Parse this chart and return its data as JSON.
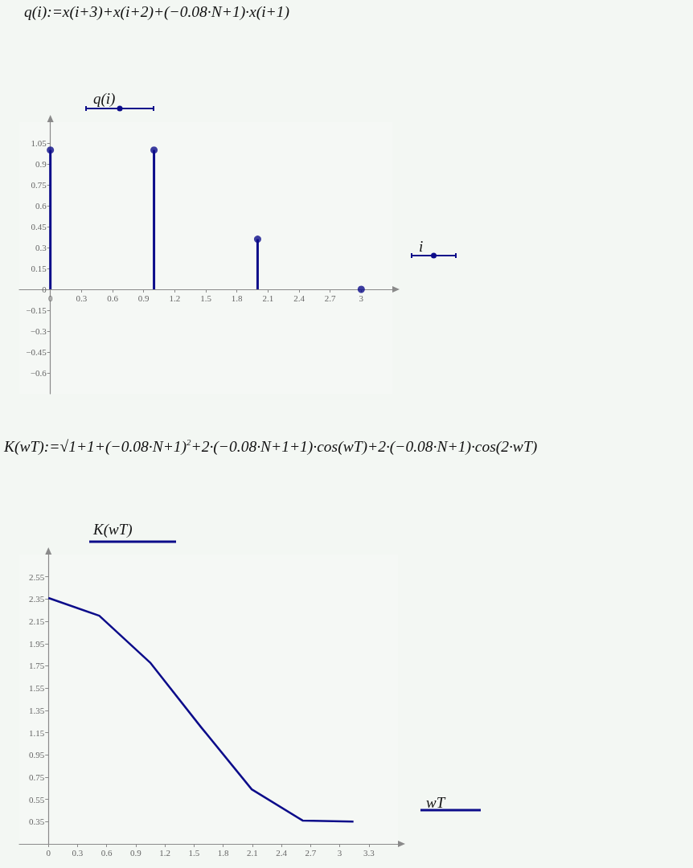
{
  "chart_data": [
    {
      "type": "lollipop",
      "title": "q(i):=x(i+3)+x(i+2)+(−0.08·N+1)·x(i+1)",
      "xlabel": "i",
      "ylabel": "q(i)",
      "x": [
        0,
        1,
        2,
        3
      ],
      "values": [
        1,
        1,
        0.36,
        0
      ],
      "color": "#0c0c8a",
      "xlim": [
        -0.3,
        3.3
      ],
      "ylim": [
        -0.75,
        1.2
      ],
      "xticks": [
        0,
        0.3,
        0.6,
        0.9,
        1.2,
        1.5,
        1.8,
        2.1,
        2.4,
        2.7,
        3
      ],
      "yticks": [
        {
          "value": -0.6,
          "label": "−0.6"
        },
        {
          "value": -0.45,
          "label": "−0.45"
        },
        {
          "value": -0.3,
          "label": "−0.3"
        },
        {
          "value": -0.15,
          "label": "−0.15"
        },
        0,
        0.15,
        0.3,
        0.45,
        0.6,
        0.75,
        0.9,
        1.05
      ],
      "grid": false,
      "marker": "circle"
    },
    {
      "type": "line",
      "title": "K(wT):=√1+1+(−0.08·N+1)$^{2}$+2·(−0.08·N+1+1)·cos(wT)+2·(−0.08·N+1)·cos(2·wT)",
      "xlabel": "wT",
      "ylabel": "K(wT)",
      "x": [
        0,
        0.524,
        1.047,
        1.571,
        2.094,
        2.618,
        3.142
      ],
      "values": [
        2.36,
        2.2,
        1.78,
        1.2,
        0.64,
        0.36,
        0.35
      ],
      "color": "#0c0c8a",
      "xlim": [
        -0.3,
        3.6
      ],
      "ylim": [
        0.15,
        2.75
      ],
      "xticks": [
        0,
        0.3,
        0.6,
        0.9,
        1.2,
        1.5,
        1.8,
        2.1,
        2.4,
        2.7,
        3,
        3.3
      ],
      "yticks": [
        0.35,
        0.55,
        0.75,
        0.95,
        1.15,
        1.35,
        1.55,
        1.75,
        1.95,
        2.15,
        2.35,
        2.55
      ],
      "grid": false,
      "marker": "none"
    }
  ]
}
